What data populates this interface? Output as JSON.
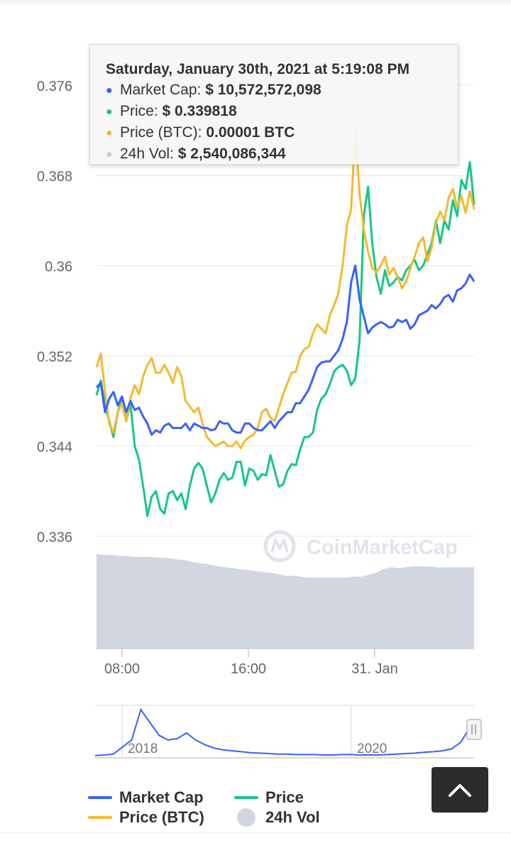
{
  "tooltip": {
    "date": "Saturday, January 30th, 2021 at 5:19:08 PM",
    "rows": [
      {
        "label": "Market Cap:",
        "value": "$ 10,572,572,098",
        "color": "#3861fb"
      },
      {
        "label": "Price:",
        "value": "$ 0.339818",
        "color": "#16c784"
      },
      {
        "label": "Price (BTC):",
        "value": "0.00001 BTC",
        "color": "#f3ba2f"
      },
      {
        "label": "24h Vol:",
        "value": "$ 2,540,086,344",
        "color": "#c9ced9"
      }
    ]
  },
  "watermark": "CoinMarketCap",
  "legend": {
    "market_cap": "Market Cap",
    "price": "Price",
    "price_btc": "Price (BTC)",
    "vol": "24h Vol"
  },
  "scroll_top_icon": "chevron-up-icon",
  "chart_data": [
    {
      "type": "line",
      "x_ticks": [
        "08:00",
        "16:00",
        "31. Jan"
      ],
      "y_ticks": [
        "0.376",
        "0.368",
        "0.36",
        "0.352",
        "0.344",
        "0.336"
      ],
      "ylim": [
        0.336,
        0.376
      ],
      "grid": true,
      "series": [
        {
          "name": "Price",
          "color": "#16c784",
          "values": [
            0.3485,
            0.3498,
            0.3476,
            0.3462,
            0.3448,
            0.347,
            0.3482,
            0.3462,
            0.3478,
            0.344,
            0.3428,
            0.3404,
            0.3378,
            0.3395,
            0.34,
            0.3384,
            0.338,
            0.3398,
            0.34,
            0.3392,
            0.3398,
            0.3384,
            0.3405,
            0.342,
            0.3425,
            0.342,
            0.3405,
            0.339,
            0.3398,
            0.341,
            0.3416,
            0.341,
            0.3412,
            0.3426,
            0.3426,
            0.3405,
            0.342,
            0.3418,
            0.341,
            0.3415,
            0.3414,
            0.3432,
            0.3418,
            0.3404,
            0.3406,
            0.3418,
            0.3424,
            0.3423,
            0.3437,
            0.3448,
            0.3448,
            0.3452,
            0.3472,
            0.3482,
            0.3486,
            0.3495,
            0.3506,
            0.351,
            0.3512,
            0.3507,
            0.3494,
            0.35,
            0.3534,
            0.3644,
            0.367,
            0.362,
            0.359,
            0.3575,
            0.3596,
            0.3582,
            0.3585,
            0.359,
            0.3587,
            0.3596,
            0.36,
            0.3605,
            0.3596,
            0.36,
            0.361,
            0.362,
            0.364,
            0.362,
            0.364,
            0.3632,
            0.3658,
            0.3644,
            0.3676,
            0.3668,
            0.3692,
            0.3654
          ]
        },
        {
          "name": "Price (BTC)",
          "color": "#f3ba2f",
          "values": [
            0.351,
            0.3522,
            0.3488,
            0.346,
            0.3452,
            0.347,
            0.3478,
            0.3462,
            0.3482,
            0.3494,
            0.3486,
            0.3502,
            0.3512,
            0.3518,
            0.3505,
            0.3505,
            0.3512,
            0.3505,
            0.3496,
            0.351,
            0.3502,
            0.348,
            0.3475,
            0.347,
            0.3474,
            0.346,
            0.3448,
            0.3444,
            0.344,
            0.3442,
            0.3444,
            0.344,
            0.344,
            0.3444,
            0.3438,
            0.3445,
            0.3448,
            0.345,
            0.3456,
            0.347,
            0.3473,
            0.3465,
            0.3462,
            0.3474,
            0.3486,
            0.3496,
            0.3505,
            0.3506,
            0.352,
            0.3526,
            0.3528,
            0.354,
            0.3548,
            0.3544,
            0.354,
            0.3556,
            0.3565,
            0.3575,
            0.36,
            0.3635,
            0.365,
            0.372,
            0.3664,
            0.3632,
            0.3612,
            0.3598,
            0.3594,
            0.36,
            0.3608,
            0.3592,
            0.3598,
            0.359,
            0.358,
            0.3586,
            0.3598,
            0.3608,
            0.362,
            0.3625,
            0.3604,
            0.3616,
            0.3638,
            0.3648,
            0.364,
            0.366,
            0.3668,
            0.3652,
            0.3662,
            0.3647,
            0.3666,
            0.365
          ]
        },
        {
          "name": "Market Cap",
          "color": "#3861fb",
          "values": [
            0.3492,
            0.3496,
            0.347,
            0.3482,
            0.3488,
            0.3476,
            0.3484,
            0.347,
            0.348,
            0.3472,
            0.3474,
            0.3466,
            0.346,
            0.345,
            0.3454,
            0.3452,
            0.3458,
            0.346,
            0.3456,
            0.3456,
            0.3456,
            0.346,
            0.3454,
            0.346,
            0.3458,
            0.3456,
            0.3456,
            0.3454,
            0.3455,
            0.3462,
            0.346,
            0.346,
            0.3454,
            0.3452,
            0.3452,
            0.346,
            0.346,
            0.3456,
            0.3454,
            0.3454,
            0.3458,
            0.3462,
            0.3456,
            0.3462,
            0.3466,
            0.347,
            0.347,
            0.3478,
            0.3478,
            0.3484,
            0.349,
            0.35,
            0.351,
            0.3514,
            0.3515,
            0.3515,
            0.352,
            0.3525,
            0.3535,
            0.355,
            0.3585,
            0.36,
            0.357,
            0.3555,
            0.354,
            0.3545,
            0.3548,
            0.355,
            0.3548,
            0.3545,
            0.3546,
            0.3552,
            0.355,
            0.3552,
            0.3544,
            0.3548,
            0.3556,
            0.3558,
            0.356,
            0.3565,
            0.3562,
            0.3566,
            0.3572,
            0.3574,
            0.3568,
            0.3578,
            0.358,
            0.3584,
            0.3592,
            0.3586
          ]
        }
      ]
    },
    {
      "type": "area",
      "name": "24h Vol",
      "color": "#d1d6e1",
      "values": [
        1.0,
        0.99,
        0.99,
        0.98,
        0.98,
        0.97,
        0.97,
        0.97,
        0.96,
        0.96,
        0.95,
        0.94,
        0.93,
        0.91,
        0.9,
        0.89,
        0.87,
        0.86,
        0.85,
        0.84,
        0.83,
        0.82,
        0.81,
        0.8,
        0.79,
        0.77,
        0.77,
        0.76,
        0.75,
        0.75,
        0.75,
        0.75,
        0.75,
        0.75,
        0.76,
        0.76,
        0.78,
        0.8,
        0.84,
        0.86,
        0.85,
        0.86,
        0.87,
        0.87,
        0.87,
        0.86,
        0.86,
        0.86,
        0.86,
        0.86,
        0.86
      ]
    },
    {
      "type": "line",
      "name": "navigator",
      "x_ticks": [
        "2018",
        "2020"
      ],
      "values": [
        0.02,
        0.03,
        0.05,
        0.2,
        0.35,
        1.0,
        0.72,
        0.45,
        0.35,
        0.38,
        0.5,
        0.35,
        0.25,
        0.18,
        0.14,
        0.12,
        0.1,
        0.08,
        0.07,
        0.06,
        0.05,
        0.05,
        0.04,
        0.04,
        0.04,
        0.03,
        0.03,
        0.04,
        0.04,
        0.03,
        0.03,
        0.03,
        0.04,
        0.05,
        0.06,
        0.07,
        0.09,
        0.1,
        0.12,
        0.16,
        0.3,
        0.62
      ]
    }
  ]
}
